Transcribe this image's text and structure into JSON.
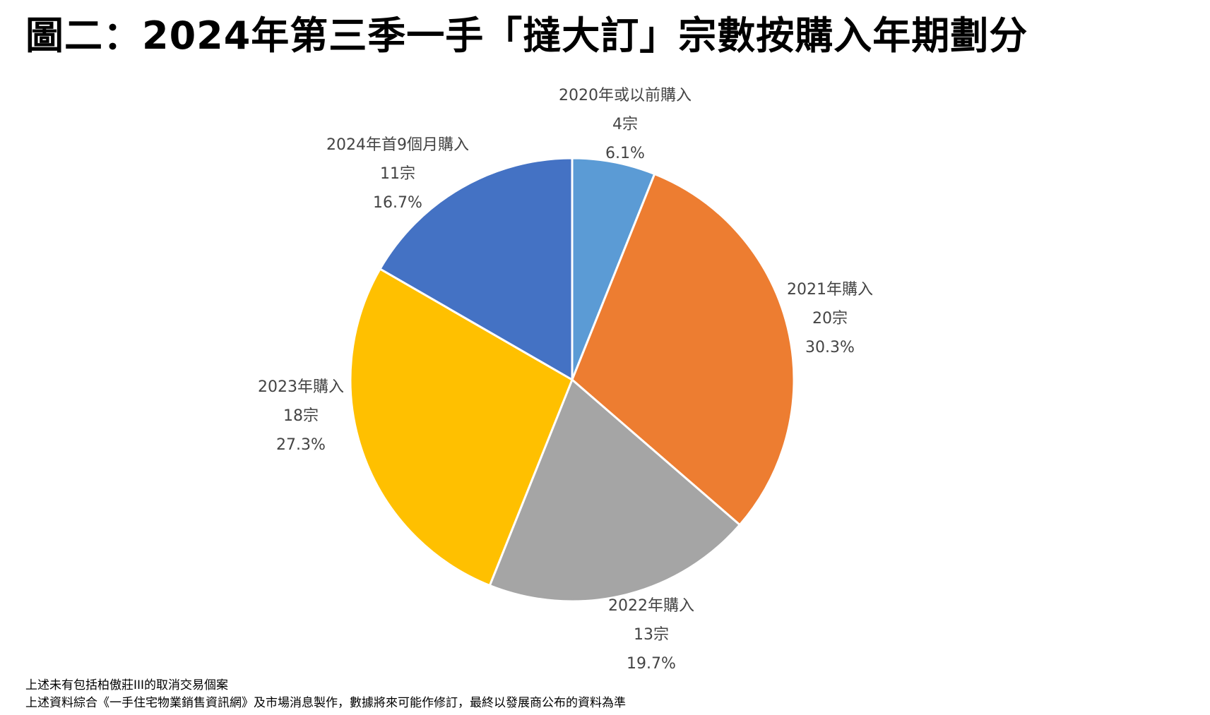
{
  "title": "圖二：2024年第三季一手「撻大訂」宗數按購入年期劃分",
  "chart_data": {
    "type": "pie",
    "title": "",
    "slices": [
      {
        "label": "2020年或以前購入",
        "count_text": "4宗",
        "percent_text": "6.1%",
        "value": 4,
        "color": "#5B9BD5"
      },
      {
        "label": "2021年購入",
        "count_text": "20宗",
        "percent_text": "30.3%",
        "value": 20,
        "color": "#ED7D31"
      },
      {
        "label": "2022年購入",
        "count_text": "13宗",
        "percent_text": "19.7%",
        "value": 13,
        "color": "#A5A5A5"
      },
      {
        "label": "2023年購入",
        "count_text": "18宗",
        "percent_text": "27.3%",
        "value": 18,
        "color": "#FFC000"
      },
      {
        "label": "2024年首9個月購入",
        "count_text": "11宗",
        "percent_text": "16.7%",
        "value": 11,
        "color": "#4472C4"
      }
    ],
    "legend": false
  },
  "footnotes": [
    "上述未有包括柏傲莊III的取消交易個案",
    "上述資料綜合《一手住宅物業銷售資訊網》及市場消息製作，數據將來可能作修訂，最終以發展商公布的資料為準"
  ]
}
